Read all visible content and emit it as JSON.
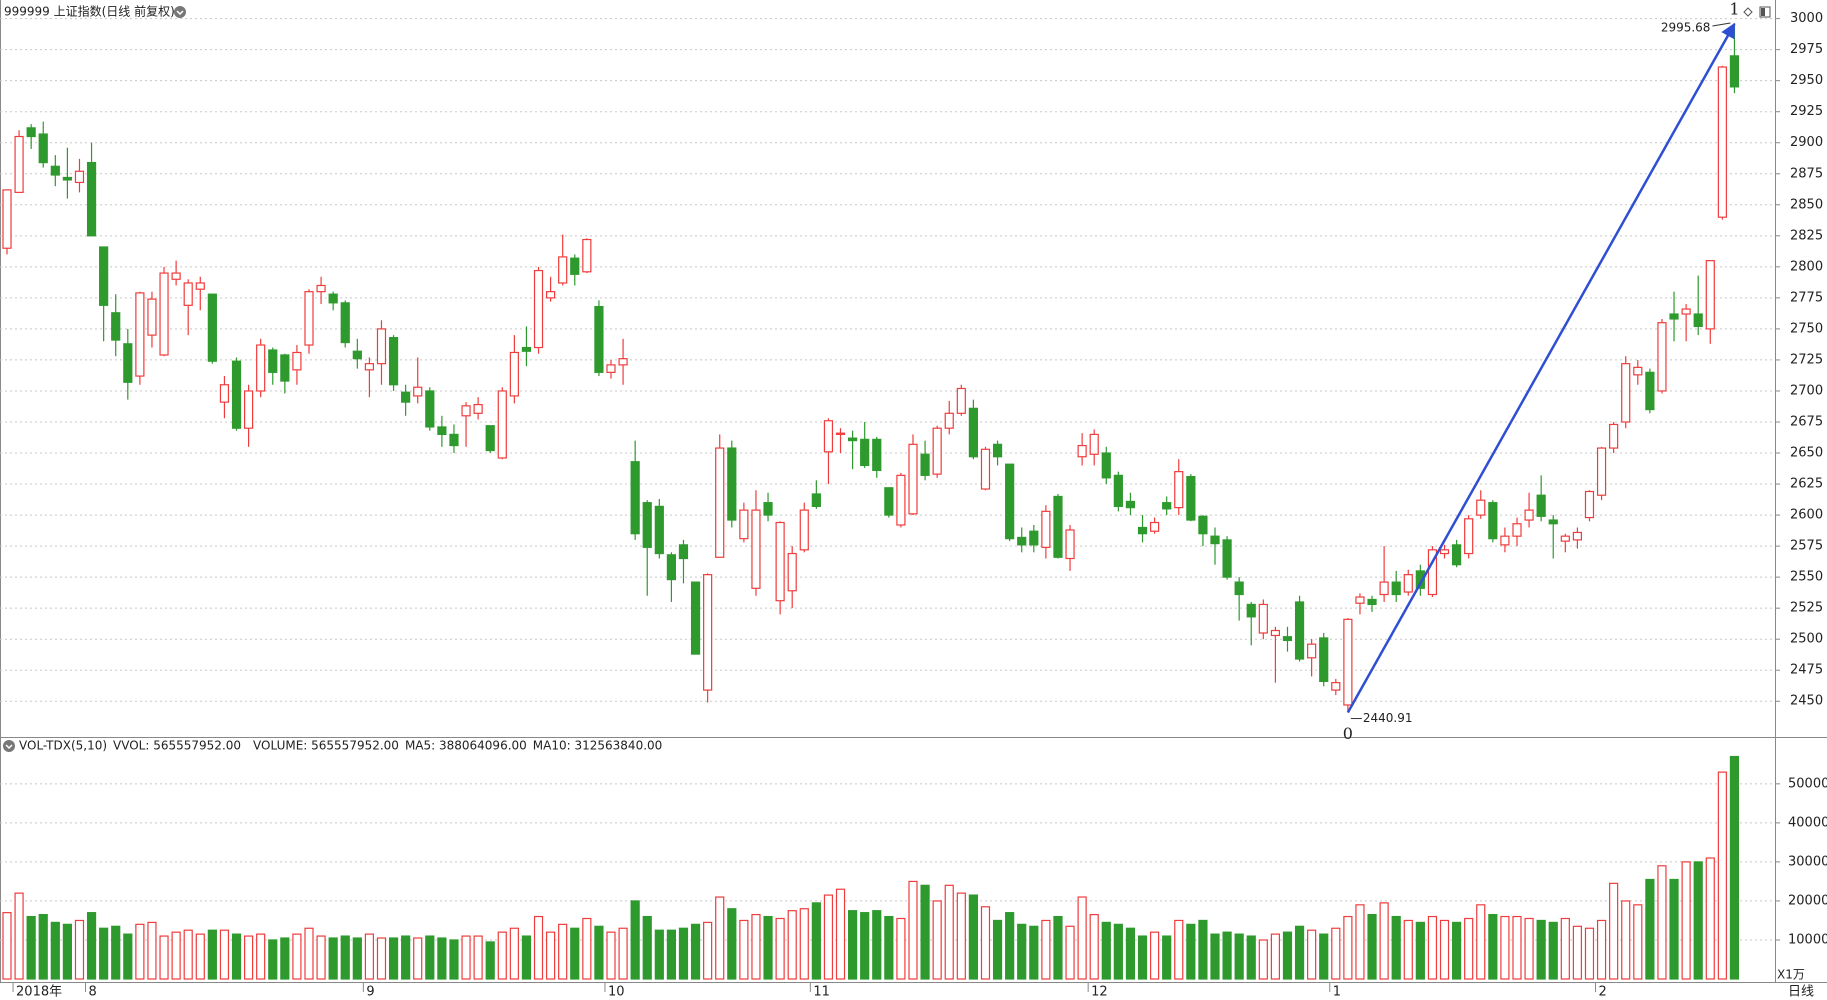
{
  "chart_data": [
    {
      "type": "candlestick",
      "title": "999999 上证指数(日线 前复权)",
      "categories": [
        null,
        "2018年",
        null,
        null,
        null,
        null,
        null,
        "8",
        null,
        null,
        null,
        null,
        null,
        null,
        null,
        null,
        null,
        null,
        null,
        null,
        null,
        null,
        null,
        null,
        null,
        null,
        null,
        null,
        null,
        null,
        "9",
        null,
        null,
        null,
        null,
        null,
        null,
        null,
        null,
        null,
        null,
        null,
        null,
        null,
        null,
        null,
        null,
        null,
        null,
        null,
        "10",
        null,
        null,
        null,
        null,
        null,
        null,
        null,
        null,
        null,
        null,
        null,
        null,
        null,
        null,
        null,
        null,
        "11",
        null,
        null,
        null,
        null,
        null,
        null,
        null,
        null,
        null,
        null,
        null,
        null,
        null,
        null,
        null,
        null,
        null,
        null,
        null,
        null,
        null,
        null,
        "12",
        null,
        null,
        null,
        null,
        null,
        null,
        null,
        null,
        null,
        null,
        null,
        null,
        null,
        null,
        null,
        null,
        null,
        null,
        null,
        "1",
        null,
        null,
        null,
        null,
        null,
        null,
        null,
        null,
        null,
        null,
        null,
        null,
        null,
        null,
        null,
        null,
        null,
        null,
        null,
        null,
        null,
        "2",
        null,
        null,
        null,
        null,
        null,
        null,
        null,
        null,
        null,
        null,
        null
      ],
      "open": [
        2815,
        2860,
        2912,
        2907,
        2881,
        2872,
        2868,
        2884,
        2816,
        2763,
        2738,
        2712,
        2745,
        2729,
        2790,
        2769,
        2782,
        2778,
        2691,
        2724,
        2670,
        2700,
        2733,
        2729,
        2717,
        2737,
        2780,
        2778,
        2771,
        2732,
        2717,
        2722,
        2743,
        2699,
        2696,
        2700,
        2671,
        2665,
        2680,
        2682,
        2672,
        2646,
        2696,
        2735,
        2735,
        2775,
        2787,
        2807,
        2796,
        2768,
        2715,
        2721,
        2643,
        2610,
        2607,
        2568,
        2576,
        2546,
        2459,
        2566,
        2654,
        2581,
        2541,
        2610,
        2531,
        2539,
        2572,
        2617,
        2651,
        2665,
        2662,
        2661,
        2661,
        2622,
        2592,
        2601,
        2649,
        2633,
        2670,
        2682,
        2686,
        2621,
        2657,
        2641,
        2582,
        2587,
        2574,
        2615,
        2565,
        2647,
        2649,
        2650,
        2632,
        2611,
        2590,
        2587,
        2610,
        2606,
        2631,
        2599,
        2583,
        2580,
        2546,
        2528,
        2505,
        2503,
        2502,
        2530,
        2485,
        2501,
        2459,
        2447,
        2529,
        2532,
        2536,
        2546,
        2538,
        2555,
        2536,
        2569,
        2576,
        2569,
        2600,
        2610,
        2576,
        2583,
        2596,
        2616,
        2596,
        2579,
        2580,
        2598,
        2616,
        2654,
        2675,
        2713,
        2715,
        2700,
        2762,
        2762,
        2762,
        2750,
        2840,
        2970
      ],
      "high": [
        2862,
        2910,
        2915,
        2917,
        2890,
        2896,
        2887,
        2900,
        2816,
        2778,
        2750,
        2780,
        2780,
        2800,
        2805,
        2790,
        2792,
        2778,
        2712,
        2727,
        2705,
        2742,
        2735,
        2730,
        2737,
        2782,
        2792,
        2780,
        2773,
        2742,
        2727,
        2757,
        2745,
        2705,
        2727,
        2703,
        2680,
        2673,
        2691,
        2695,
        2672,
        2703,
        2745,
        2752,
        2800,
        2792,
        2826,
        2810,
        2823,
        2773,
        2725,
        2742,
        2660,
        2612,
        2613,
        2570,
        2580,
        2546,
        2553,
        2665,
        2660,
        2610,
        2620,
        2618,
        2595,
        2575,
        2610,
        2628,
        2678,
        2670,
        2668,
        2675,
        2663,
        2622,
        2634,
        2665,
        2660,
        2672,
        2692,
        2705,
        2693,
        2655,
        2660,
        2641,
        2590,
        2592,
        2608,
        2617,
        2592,
        2666,
        2669,
        2655,
        2635,
        2618,
        2600,
        2598,
        2615,
        2645,
        2633,
        2600,
        2590,
        2583,
        2550,
        2530,
        2532,
        2510,
        2510,
        2535,
        2500,
        2505,
        2468,
        2517,
        2537,
        2535,
        2575,
        2555,
        2556,
        2560,
        2575,
        2576,
        2580,
        2600,
        2620,
        2612,
        2590,
        2598,
        2618,
        2632,
        2600,
        2585,
        2590,
        2620,
        2655,
        2675,
        2728,
        2725,
        2718,
        2758,
        2780,
        2770,
        2793,
        2805,
        2962,
        2995.68
      ],
      "low": [
        2810,
        2860,
        2895,
        2880,
        2865,
        2855,
        2860,
        2825,
        2740,
        2728,
        2693,
        2705,
        2735,
        2728,
        2785,
        2745,
        2765,
        2722,
        2678,
        2668,
        2655,
        2695,
        2705,
        2698,
        2705,
        2730,
        2770,
        2765,
        2735,
        2718,
        2695,
        2705,
        2700,
        2680,
        2690,
        2668,
        2655,
        2650,
        2655,
        2677,
        2650,
        2645,
        2690,
        2720,
        2730,
        2772,
        2785,
        2785,
        2795,
        2712,
        2710,
        2705,
        2580,
        2535,
        2565,
        2530,
        2545,
        2488,
        2449,
        2566,
        2590,
        2578,
        2535,
        2595,
        2520,
        2525,
        2570,
        2605,
        2625,
        2650,
        2637,
        2638,
        2630,
        2598,
        2590,
        2600,
        2628,
        2630,
        2665,
        2680,
        2645,
        2620,
        2640,
        2579,
        2570,
        2570,
        2565,
        2565,
        2555,
        2640,
        2640,
        2625,
        2603,
        2600,
        2578,
        2585,
        2600,
        2600,
        2595,
        2575,
        2560,
        2548,
        2515,
        2495,
        2500,
        2465,
        2490,
        2482,
        2470,
        2462,
        2455,
        2440.91,
        2520,
        2522,
        2530,
        2530,
        2535,
        2535,
        2534,
        2565,
        2558,
        2565,
        2597,
        2578,
        2570,
        2575,
        2590,
        2595,
        2565,
        2570,
        2573,
        2595,
        2612,
        2650,
        2670,
        2705,
        2682,
        2698,
        2740,
        2740,
        2745,
        2738,
        2838,
        2940
      ],
      "close": [
        2862,
        2905,
        2905,
        2884,
        2874,
        2870,
        2877,
        2825,
        2769,
        2741,
        2707,
        2779,
        2774,
        2795,
        2795,
        2787,
        2787,
        2724,
        2705,
        2670,
        2700,
        2737,
        2715,
        2708,
        2731,
        2780,
        2785,
        2771,
        2739,
        2726,
        2722,
        2750,
        2705,
        2691,
        2703,
        2671,
        2665,
        2656,
        2688,
        2689,
        2652,
        2700,
        2731,
        2732,
        2797,
        2780,
        2808,
        2794,
        2822,
        2715,
        2721,
        2726,
        2585,
        2574,
        2569,
        2548,
        2565,
        2488,
        2552,
        2654,
        2596,
        2604,
        2604,
        2600,
        2594,
        2569,
        2604,
        2607,
        2676,
        2666,
        2660,
        2640,
        2636,
        2600,
        2632,
        2657,
        2632,
        2670,
        2682,
        2702,
        2647,
        2653,
        2647,
        2581,
        2576,
        2576,
        2603,
        2566,
        2588,
        2656,
        2665,
        2630,
        2607,
        2606,
        2585,
        2594,
        2605,
        2635,
        2596,
        2585,
        2577,
        2550,
        2536,
        2518,
        2528,
        2507,
        2499,
        2484,
        2496,
        2466,
        2465,
        2516,
        2534,
        2528,
        2546,
        2536,
        2552,
        2541,
        2572,
        2572,
        2560,
        2597,
        2612,
        2581,
        2583,
        2593,
        2604,
        2599,
        2593,
        2583,
        2586,
        2619,
        2654,
        2673,
        2722,
        2719,
        2685,
        2755,
        2758,
        2766,
        2752,
        2805,
        2961,
        2945
      ],
      "up_color": "#f03c3c",
      "down_color": "#2e9a2e",
      "ylim": [
        2422,
        3015
      ],
      "yticks": [
        2450,
        2475,
        2500,
        2525,
        2550,
        2575,
        2600,
        2625,
        2650,
        2675,
        2700,
        2725,
        2750,
        2775,
        2800,
        2825,
        2850,
        2875,
        2900,
        2925,
        2950,
        2975,
        3000
      ],
      "grid": true,
      "annotations": {
        "low_label": "2440.91",
        "high_label": "2995.68",
        "start_label": "0",
        "end_label": "1",
        "trend_color": "#2f4fd3"
      }
    },
    {
      "type": "bar",
      "indicator": "VOL-TDX(5,10)",
      "vvol": "VVOL: 565557952.00",
      "volume_label": "VOLUME: 565557952.00",
      "ma5_label": "MA5: 388064096.00",
      "ma10_label": "MA10: 312563840.00",
      "volume_color": "#1a73c8",
      "ma10_color": "#a0209a",
      "values": [
        17000,
        22000,
        16000,
        16500,
        14500,
        14000,
        15000,
        17000,
        13000,
        13500,
        11500,
        14000,
        14500,
        11000,
        12000,
        12500,
        11500,
        12500,
        12500,
        11500,
        11000,
        11500,
        10000,
        10500,
        11500,
        13000,
        11000,
        10500,
        11000,
        10500,
        11500,
        10500,
        10500,
        11000,
        10500,
        11000,
        10500,
        10000,
        11000,
        11000,
        9500,
        12000,
        13000,
        11000,
        16000,
        12000,
        14000,
        13000,
        15500,
        13500,
        12000,
        13000,
        20000,
        16000,
        12500,
        12500,
        13000,
        14000,
        14500,
        21000,
        18000,
        15000,
        16500,
        16000,
        15500,
        17500,
        18000,
        19500,
        21500,
        23000,
        17500,
        17000,
        17500,
        16000,
        15500,
        25000,
        24000,
        20000,
        24000,
        22000,
        21500,
        18500,
        15000,
        17000,
        14000,
        13500,
        15000,
        16000,
        13500,
        21000,
        16500,
        14500,
        14000,
        13000,
        11000,
        12000,
        11000,
        15000,
        14000,
        15000,
        11500,
        12000,
        11500,
        11000,
        10000,
        11500,
        12000,
        13500,
        12500,
        11500,
        13000,
        16000,
        19000,
        16500,
        19500,
        16000,
        15000,
        14500,
        16000,
        15000,
        14500,
        15500,
        19000,
        16500,
        16000,
        16000,
        15500,
        15000,
        14500,
        15500,
        13500,
        13000,
        15000,
        24500,
        20000,
        19000,
        25500,
        29000,
        25500,
        30000,
        30000,
        31000,
        53000,
        57000
      ],
      "ylim": [
        0,
        62000
      ],
      "yticks": [
        10000,
        20000,
        30000,
        40000,
        50000
      ],
      "grid": true,
      "unit_label": "X1万",
      "period_label": "日线"
    }
  ]
}
